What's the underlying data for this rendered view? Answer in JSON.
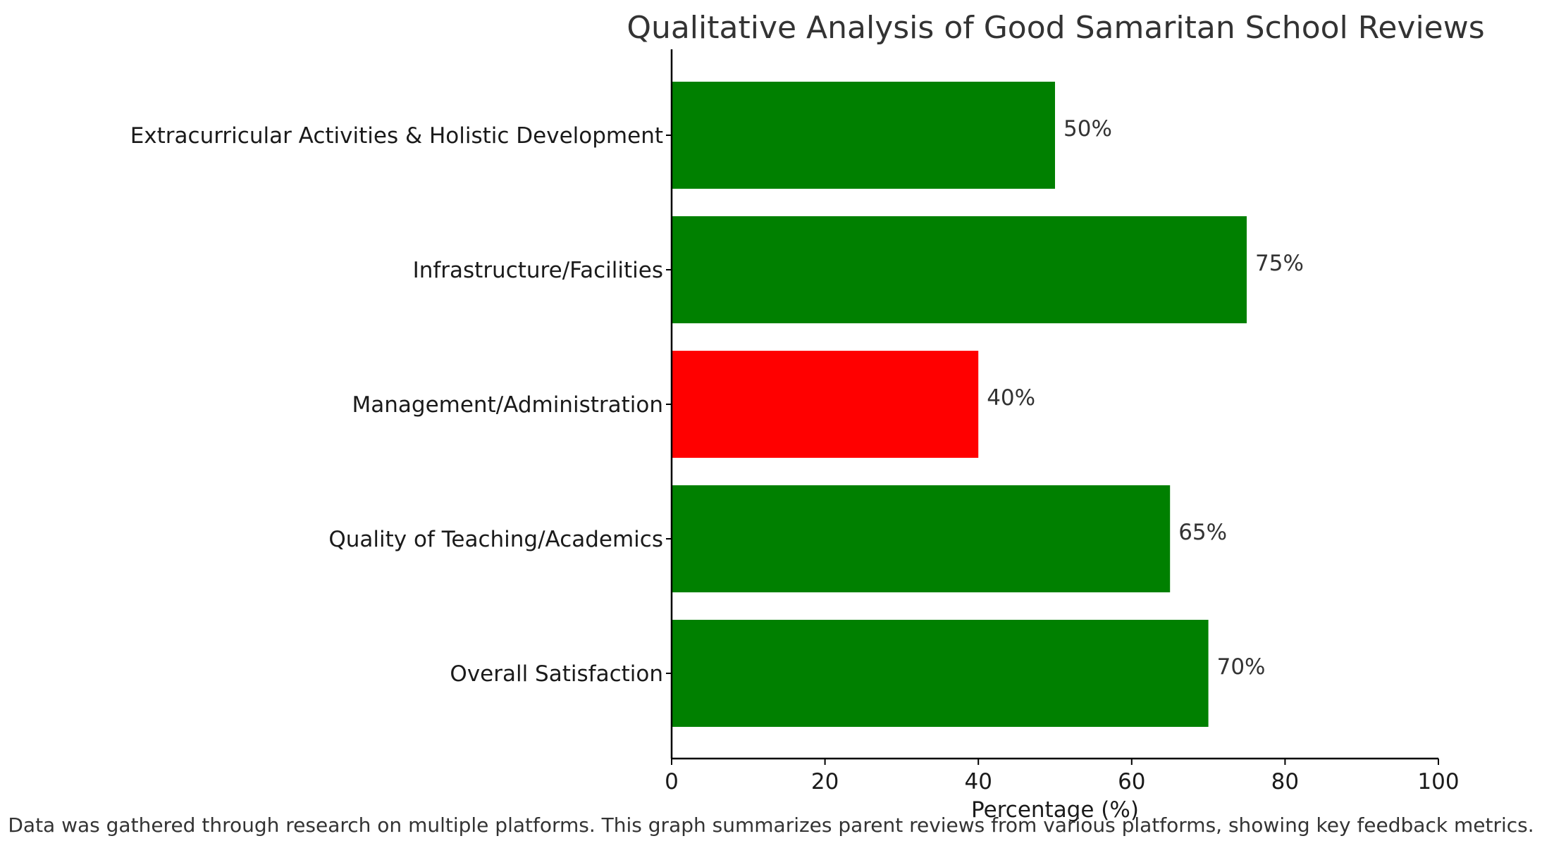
{
  "chart_data": {
    "type": "bar",
    "orientation": "horizontal",
    "title": "Qualitative Analysis of Good Samaritan School Reviews",
    "xlabel": "Percentage (%)",
    "ylabel": "",
    "xlim": [
      0,
      100
    ],
    "x_ticks": [
      0,
      20,
      40,
      60,
      80,
      100
    ],
    "categories": [
      "Overall Satisfaction",
      "Quality of Teaching/Academics",
      "Management/Administration",
      "Infrastructure/Facilities",
      "Extracurricular Activities & Holistic Development"
    ],
    "values": [
      70,
      65,
      40,
      75,
      50
    ],
    "value_labels": [
      "70%",
      "65%",
      "40%",
      "75%",
      "50%"
    ],
    "bar_colors": [
      "#008000",
      "#008000",
      "#ff0000",
      "#008000",
      "#008000"
    ],
    "grid": false,
    "legend": "none"
  },
  "footnote": "Data was gathered through research on multiple platforms. This graph summarizes parent reviews from various platforms, showing key feedback metrics."
}
